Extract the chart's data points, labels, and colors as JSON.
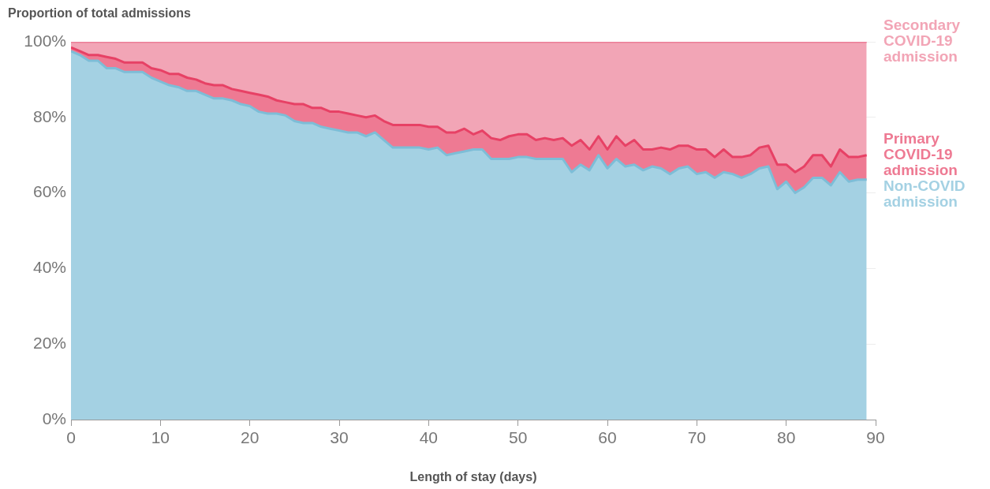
{
  "chart_data": {
    "type": "area",
    "stacked": true,
    "ylabel": "Proportion of total admissions",
    "xlabel": "Length of stay (days)",
    "x": [
      0,
      1,
      2,
      3,
      4,
      5,
      6,
      7,
      8,
      9,
      10,
      11,
      12,
      13,
      14,
      15,
      16,
      17,
      18,
      19,
      20,
      21,
      22,
      23,
      24,
      25,
      26,
      27,
      28,
      29,
      30,
      31,
      32,
      33,
      34,
      35,
      36,
      37,
      38,
      39,
      40,
      41,
      42,
      43,
      44,
      45,
      46,
      47,
      48,
      49,
      50,
      51,
      52,
      53,
      54,
      55,
      56,
      57,
      58,
      59,
      60,
      61,
      62,
      63,
      64,
      65,
      66,
      67,
      68,
      69,
      70,
      71,
      72,
      73,
      74,
      75,
      76,
      77,
      78,
      79,
      80,
      81,
      82,
      83,
      84,
      85,
      86,
      87,
      88,
      89
    ],
    "xlim": [
      0,
      90
    ],
    "xticks": [
      0,
      10,
      20,
      30,
      40,
      50,
      60,
      70,
      80,
      90
    ],
    "ylim": [
      0,
      100
    ],
    "yticks": [
      {
        "value": 0,
        "label": "0%"
      },
      {
        "value": 20,
        "label": "20%"
      },
      {
        "value": 40,
        "label": "40%"
      },
      {
        "value": 60,
        "label": "60%"
      },
      {
        "value": 80,
        "label": "80%"
      },
      {
        "value": 100,
        "label": "100%"
      }
    ],
    "grid": "y",
    "legend": "right",
    "series": [
      {
        "name": "Non-COVID admission",
        "color": "#a4d1e3",
        "values": [
          97.5,
          96.5,
          95,
          95,
          93,
          93,
          92,
          92,
          92,
          90.5,
          89.5,
          88.5,
          88,
          87,
          87,
          86,
          85,
          85,
          84.5,
          83.5,
          83,
          81.5,
          81,
          81,
          80.5,
          79,
          78.5,
          78.5,
          77.5,
          77,
          76.5,
          76,
          76,
          75,
          76,
          74,
          72,
          72,
          72,
          72,
          71.5,
          72,
          70,
          70.5,
          71,
          71.5,
          71.5,
          69,
          69,
          69,
          69.5,
          69.5,
          69,
          69,
          69,
          69,
          65.5,
          67.5,
          66,
          70,
          66.5,
          69,
          67,
          67.5,
          66,
          67,
          66.5,
          65,
          66.5,
          67,
          65,
          65.5,
          64,
          65.5,
          65,
          64,
          65,
          66.5,
          67,
          61,
          63,
          60,
          61.5,
          64,
          64,
          62,
          65.5,
          63,
          63.5,
          63.5
        ]
      },
      {
        "name": "Primary COVID-19 admission",
        "color": "#ee7a93",
        "values": [
          1,
          1,
          1.5,
          1.5,
          3,
          2.5,
          2.5,
          2.5,
          2.5,
          2.5,
          3,
          3,
          3.5,
          3.5,
          3,
          3,
          3.5,
          3.5,
          3,
          3.5,
          3.5,
          4.5,
          4.5,
          3.5,
          3.5,
          4.5,
          5,
          4,
          5,
          4.5,
          5,
          5,
          4.5,
          5,
          4.5,
          5,
          6,
          6,
          6,
          6,
          6,
          5.5,
          6,
          5.5,
          6,
          4,
          5,
          5.5,
          5,
          6,
          6,
          6,
          5,
          5.5,
          5,
          5.5,
          7,
          6.5,
          5.5,
          5,
          5,
          6,
          5.5,
          6.5,
          5.5,
          4.5,
          5.5,
          6.5,
          6,
          5.5,
          6.5,
          6,
          5.5,
          6,
          4.5,
          5.5,
          5,
          5.5,
          5.5,
          6.5,
          4.5,
          5.5,
          5.5,
          6,
          6,
          5,
          6,
          6.5,
          6,
          6.5
        ]
      },
      {
        "name": "Secondary COVID-19 admission",
        "color": "#f2a5b6",
        "values": [
          1.5,
          2.5,
          3.5,
          3.5,
          4,
          4.5,
          5.5,
          5.5,
          5.5,
          7,
          7.5,
          8.5,
          8.5,
          9.5,
          10,
          11,
          11.5,
          11.5,
          12.5,
          13,
          13.5,
          14,
          14.5,
          15.5,
          16,
          16.5,
          16.5,
          17.5,
          17.5,
          18.5,
          18.5,
          19,
          19.5,
          20,
          19.5,
          21,
          22,
          22,
          22,
          22,
          22.5,
          22.5,
          24,
          24,
          23,
          24.5,
          23.5,
          25.5,
          26,
          25,
          24.5,
          24.5,
          26,
          25.5,
          26,
          25.5,
          27.5,
          26,
          28.5,
          25,
          28.5,
          25,
          27.5,
          26,
          28.5,
          28.5,
          28,
          28.5,
          27.5,
          27.5,
          28.5,
          28.5,
          30.5,
          28.5,
          30.5,
          30.5,
          30,
          28,
          27.5,
          32.5,
          32.5,
          34.5,
          33,
          30,
          30,
          33,
          28.5,
          30.5,
          30.5,
          30
        ]
      }
    ]
  }
}
